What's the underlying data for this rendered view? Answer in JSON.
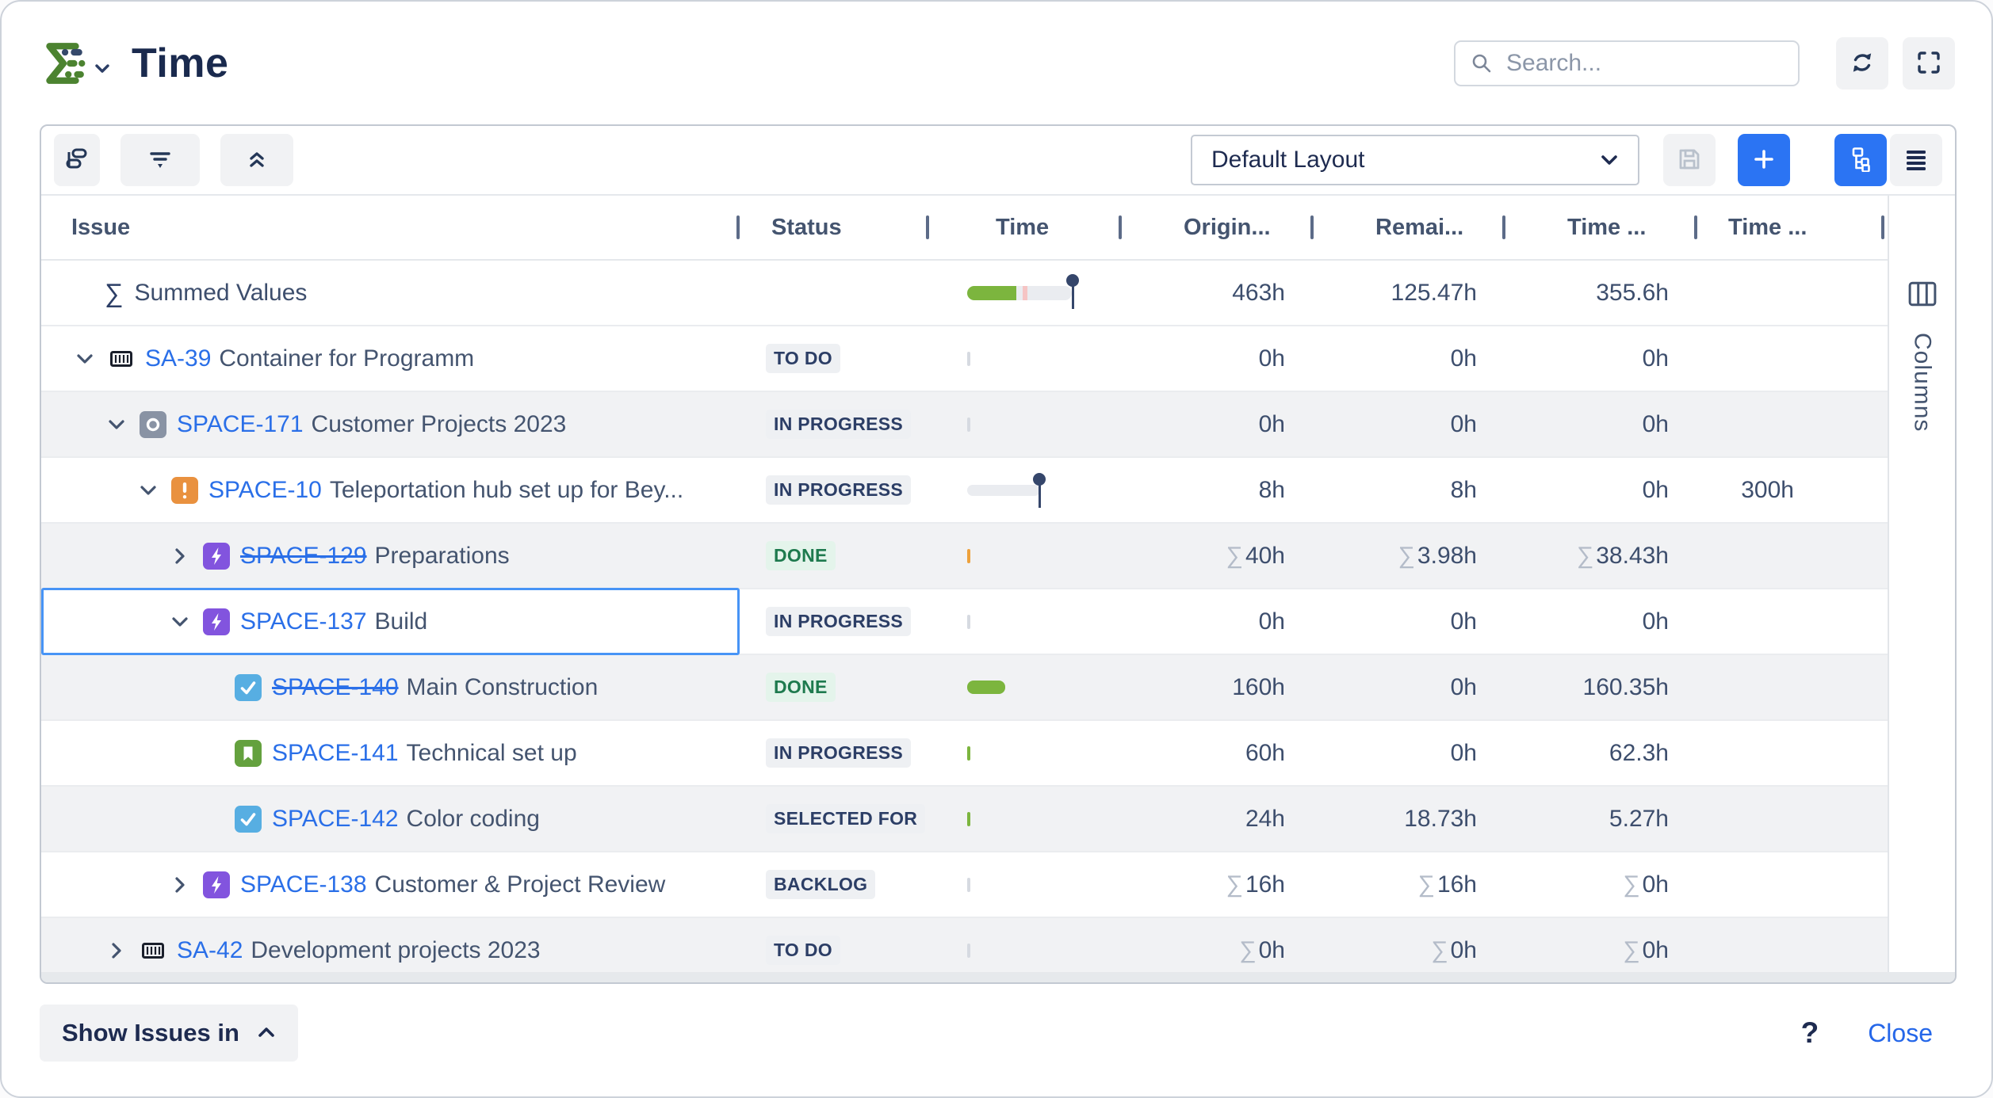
{
  "header": {
    "title": "Time",
    "search_placeholder": "Search..."
  },
  "toolbar": {
    "layout_label": "Default Layout"
  },
  "table": {
    "columns": [
      "Issue",
      "Status",
      "Time",
      "Origin...",
      "Remai...",
      "Time ...",
      "Time ..."
    ],
    "summed": {
      "sigma": "∑",
      "label": "Summed Values",
      "original": "463h",
      "remaining": "125.47h",
      "spent": "355.6h"
    },
    "rows": [
      {
        "key": "SA-39",
        "summary": "Container for Programm",
        "level": 0,
        "expander": "down",
        "icon": "container",
        "struck": false,
        "status": "TO DO",
        "status_kind": "default",
        "bar": "tick-gray",
        "original": "0h",
        "remaining": "0h",
        "spent": "0h",
        "extra": "",
        "sum": false,
        "selected": false,
        "shaded": false
      },
      {
        "key": "SPACE-171",
        "summary": "Customer Projects 2023",
        "level": 1,
        "expander": "down",
        "icon": "component",
        "struck": false,
        "status": "IN PROGRESS",
        "status_kind": "default",
        "bar": "tick-gray",
        "original": "0h",
        "remaining": "0h",
        "spent": "0h",
        "extra": "",
        "sum": false,
        "selected": false,
        "shaded": true
      },
      {
        "key": "SPACE-10",
        "summary": "Teleportation hub set up for Bey...",
        "level": 2,
        "expander": "down",
        "icon": "incident",
        "struck": false,
        "status": "IN PROGRESS",
        "status_kind": "default",
        "bar": "pin",
        "original": "8h",
        "remaining": "8h",
        "spent": "0h",
        "extra": "300h",
        "sum": false,
        "selected": false,
        "shaded": false
      },
      {
        "key": "SPACE-129",
        "summary": "Preparations",
        "level": 3,
        "expander": "right",
        "icon": "bolt",
        "struck": true,
        "status": "DONE",
        "status_kind": "done",
        "bar": "tick-orange",
        "original": "40h",
        "remaining": "3.98h",
        "spent": "38.43h",
        "extra": "",
        "sum": true,
        "selected": false,
        "shaded": true
      },
      {
        "key": "SPACE-137",
        "summary": "Build",
        "level": 3,
        "expander": "down",
        "icon": "bolt",
        "struck": false,
        "status": "IN PROGRESS",
        "status_kind": "default",
        "bar": "tick-gray",
        "original": "0h",
        "remaining": "0h",
        "spent": "0h",
        "extra": "",
        "sum": false,
        "selected": true,
        "shaded": false
      },
      {
        "key": "SPACE-140",
        "summary": "Main Construction",
        "level": 4,
        "expander": null,
        "icon": "task",
        "struck": true,
        "status": "DONE",
        "status_kind": "done",
        "bar": "pill",
        "original": "160h",
        "remaining": "0h",
        "spent": "160.35h",
        "extra": "",
        "sum": false,
        "selected": false,
        "shaded": true
      },
      {
        "key": "SPACE-141",
        "summary": "Technical set up",
        "level": 4,
        "expander": null,
        "icon": "story",
        "struck": false,
        "status": "IN PROGRESS",
        "status_kind": "default",
        "bar": "tick-green",
        "original": "60h",
        "remaining": "0h",
        "spent": "62.3h",
        "extra": "",
        "sum": false,
        "selected": false,
        "shaded": false
      },
      {
        "key": "SPACE-142",
        "summary": "Color coding",
        "level": 4,
        "expander": null,
        "icon": "task",
        "struck": false,
        "status": "SELECTED FOR",
        "status_kind": "default",
        "bar": "tick-green",
        "original": "24h",
        "remaining": "18.73h",
        "spent": "5.27h",
        "extra": "",
        "sum": false,
        "selected": false,
        "shaded": true
      },
      {
        "key": "SPACE-138",
        "summary": "Customer & Project Review",
        "level": 3,
        "expander": "right",
        "icon": "bolt",
        "struck": false,
        "status": "BACKLOG",
        "status_kind": "default",
        "bar": "tick-gray",
        "original": "16h",
        "remaining": "16h",
        "spent": "0h",
        "extra": "",
        "sum": true,
        "selected": false,
        "shaded": false
      },
      {
        "key": "SA-42",
        "summary": "Development projects 2023",
        "level": 1,
        "expander": "right",
        "icon": "container",
        "struck": false,
        "status": "TO DO",
        "status_kind": "default",
        "bar": "tick-gray",
        "original": "0h",
        "remaining": "0h",
        "spent": "0h",
        "extra": "",
        "sum": true,
        "selected": false,
        "shaded": true
      }
    ]
  },
  "side": {
    "columns_label": "Columns"
  },
  "footer": {
    "show_issues_label": "Show Issues in",
    "help_label": "?",
    "close_label": "Close"
  },
  "colors": {
    "accent_blue": "#2b74f3",
    "link_blue": "#2a6fe8",
    "bar_green": "#7cb53e",
    "tick_orange": "#eda13c",
    "badge_done_text": "#1e7a4e",
    "badge_done_bg": "#e4f4eb",
    "navy": "#1e2b50",
    "pin": "#35466b"
  }
}
